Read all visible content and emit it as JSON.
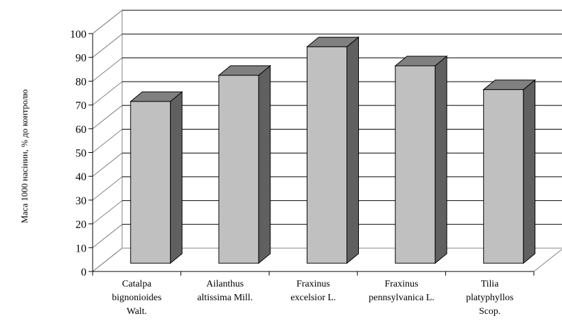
{
  "chart_data": {
    "type": "bar",
    "style": "3d-column",
    "categories": [
      [
        "Catalpa",
        "bignonioides",
        "Walt."
      ],
      [
        "Ailanthus",
        "altissima Mill."
      ],
      [
        "Fraxinus",
        "excelsior L."
      ],
      [
        "Fraxinus",
        "pennsylvanica L."
      ],
      [
        "Tilia",
        "platyphyllos",
        "Scop."
      ]
    ],
    "values": [
      68,
      79,
      91,
      83,
      73
    ],
    "ylabel": "Маса 1000 насінин, % до контролю",
    "xlabel": "",
    "ylim": [
      0,
      100
    ],
    "yticks": [
      "0",
      "10",
      "20",
      "30",
      "40",
      "50",
      "60",
      "70",
      "80",
      "90",
      "100"
    ],
    "grid": true,
    "legend": "none",
    "colors": {
      "bar_front": "#c0c0c0",
      "bar_top": "#808080",
      "bar_side": "#606060",
      "grid": "#000000"
    }
  }
}
